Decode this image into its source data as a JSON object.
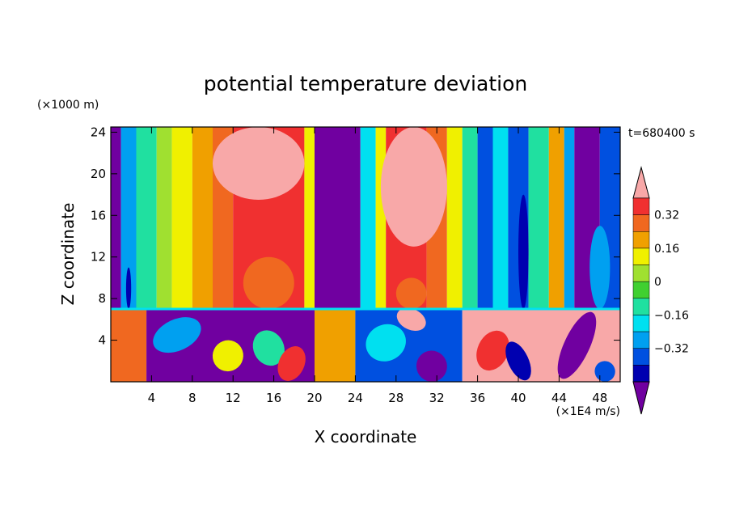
{
  "chart_data": {
    "type": "heatmap",
    "title": "potential temperature deviation",
    "xlabel": "X coordinate",
    "ylabel": "Z coordinate",
    "x_unit": "(×1E4 m/s)",
    "y_unit": "(×1000 m)",
    "time_label": "t=680400 s",
    "xlim": [
      0,
      50
    ],
    "ylim": [
      0,
      24.5
    ],
    "x_ticks": [
      4,
      8,
      12,
      16,
      20,
      24,
      28,
      32,
      36,
      40,
      44,
      48
    ],
    "y_ticks": [
      4,
      8,
      12,
      16,
      20,
      24
    ],
    "colorbar": {
      "labels": [
        "0.32",
        "0.16",
        "0",
        "−0.16",
        "−0.32"
      ],
      "levels": [
        0.32,
        0.16,
        0,
        -0.16,
        -0.32
      ],
      "colors_top_to_bottom": [
        "#f8a8a8",
        "#f03030",
        "#f06820",
        "#f0a000",
        "#f0f000",
        "#a0e030",
        "#40d030",
        "#20e0a0",
        "#00e0f0",
        "#00a0f0",
        "#0050e0",
        "#0000b0",
        "#7000a0"
      ]
    },
    "interface_z": 7,
    "upper_columns": [
      {
        "x0": 0,
        "x1": 1,
        "color": "#7000a0"
      },
      {
        "x0": 1,
        "x1": 2.5,
        "color": "#00a0f0"
      },
      {
        "x0": 2.5,
        "x1": 4.5,
        "color": "#20e0a0"
      },
      {
        "x0": 4.5,
        "x1": 6,
        "color": "#a0e030"
      },
      {
        "x0": 6,
        "x1": 8,
        "color": "#f0f000"
      },
      {
        "x0": 8,
        "x1": 10,
        "color": "#f0a000"
      },
      {
        "x0": 10,
        "x1": 12,
        "color": "#f06820"
      },
      {
        "x0": 12,
        "x1": 19,
        "color": "#f03030"
      },
      {
        "x0": 19,
        "x1": 20,
        "color": "#f0f000"
      },
      {
        "x0": 20,
        "x1": 24.5,
        "color": "#7000a0"
      },
      {
        "x0": 24.5,
        "x1": 26,
        "color": "#00e0f0"
      },
      {
        "x0": 26,
        "x1": 27,
        "color": "#f0f000"
      },
      {
        "x0": 27,
        "x1": 31,
        "color": "#f03030"
      },
      {
        "x0": 31,
        "x1": 33,
        "color": "#f06820"
      },
      {
        "x0": 33,
        "x1": 34.5,
        "color": "#f0f000"
      },
      {
        "x0": 34.5,
        "x1": 36,
        "color": "#20e0a0"
      },
      {
        "x0": 36,
        "x1": 37.5,
        "color": "#0050e0"
      },
      {
        "x0": 37.5,
        "x1": 39,
        "color": "#00e0f0"
      },
      {
        "x0": 39,
        "x1": 41,
        "color": "#0050e0"
      },
      {
        "x0": 41,
        "x1": 43,
        "color": "#20e0a0"
      },
      {
        "x0": 43,
        "x1": 44.5,
        "color": "#f0a000"
      },
      {
        "x0": 44.5,
        "x1": 45.5,
        "color": "#00a0f0"
      },
      {
        "x0": 45.5,
        "x1": 48,
        "color": "#7000a0"
      },
      {
        "x0": 48,
        "x1": 50,
        "color": "#0050e0"
      }
    ],
    "upper_blobs": [
      {
        "x0": 10,
        "x1": 19,
        "z0": 17.5,
        "z1": 24.5,
        "color": "#f8a8a8"
      },
      {
        "x0": 26.5,
        "x1": 33,
        "z0": 13,
        "z1": 24.5,
        "color": "#f8a8a8"
      },
      {
        "x0": 13,
        "x1": 18,
        "z0": 7,
        "z1": 12,
        "color": "#f06820"
      },
      {
        "x0": 28,
        "x1": 31,
        "z0": 7,
        "z1": 10,
        "color": "#f06820"
      },
      {
        "x0": 40,
        "x1": 41,
        "z0": 7,
        "z1": 18,
        "color": "#0000b0"
      },
      {
        "x0": 1.5,
        "x1": 2,
        "z0": 7,
        "z1": 11,
        "color": "#0000b0"
      },
      {
        "x0": 47,
        "x1": 49,
        "z0": 7,
        "z1": 15,
        "color": "#00a0f0"
      }
    ],
    "lower_columns": [
      {
        "x0": 0,
        "x1": 3.5,
        "color": "#f06820"
      },
      {
        "x0": 3.5,
        "x1": 20,
        "color": "#7000a0"
      },
      {
        "x0": 20,
        "x1": 24,
        "color": "#f0a000"
      },
      {
        "x0": 24,
        "x1": 34.5,
        "color": "#0050e0"
      },
      {
        "x0": 34.5,
        "x1": 50,
        "color": "#f8a8a8"
      }
    ],
    "lower_blobs": [
      {
        "x0": 4,
        "x1": 9,
        "z0": 3,
        "z1": 6,
        "color": "#00a0f0"
      },
      {
        "x0": 10,
        "x1": 13,
        "z0": 1,
        "z1": 4,
        "color": "#f0f000"
      },
      {
        "x0": 14,
        "x1": 17,
        "z0": 1.5,
        "z1": 5,
        "color": "#20e0a0"
      },
      {
        "x0": 16.5,
        "x1": 19,
        "z0": 0,
        "z1": 3.5,
        "color": "#f03030"
      },
      {
        "x0": 25,
        "x1": 29,
        "z0": 2,
        "z1": 5.5,
        "color": "#00e0f0"
      },
      {
        "x0": 28,
        "x1": 31,
        "z0": 5,
        "z1": 7,
        "color": "#f8a8a8"
      },
      {
        "x0": 30,
        "x1": 33,
        "z0": 0,
        "z1": 3,
        "color": "#7000a0"
      },
      {
        "x0": 36,
        "x1": 39,
        "z0": 1,
        "z1": 5,
        "color": "#f03030"
      },
      {
        "x0": 39,
        "x1": 41,
        "z0": 0,
        "z1": 4,
        "color": "#0000b0"
      },
      {
        "x0": 44.5,
        "x1": 47,
        "z0": 0,
        "z1": 7,
        "color": "#7000a0"
      },
      {
        "x0": 47.5,
        "x1": 49.5,
        "z0": 0,
        "z1": 2,
        "color": "#0050e0"
      }
    ]
  }
}
